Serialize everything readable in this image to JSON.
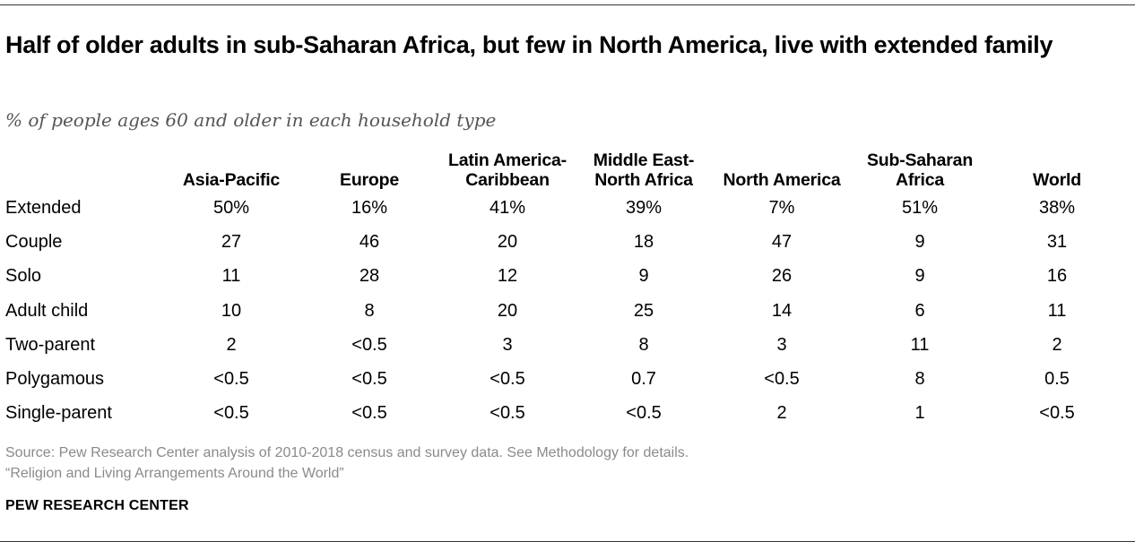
{
  "chart_data": {
    "type": "table",
    "title": "Half of older adults in sub-Saharan Africa, but few in North America, live with extended family",
    "subtitle": "% of people ages 60 and older in each household type",
    "columns": [
      [
        "Asia-Pacific"
      ],
      [
        "Europe"
      ],
      [
        "Latin America-",
        "Caribbean"
      ],
      [
        "Middle East-",
        "North Africa"
      ],
      [
        "North America"
      ],
      [
        "Sub-Saharan",
        "Africa"
      ],
      [
        "World"
      ]
    ],
    "rows": [
      {
        "label": "Extended",
        "values": [
          "50%",
          "16%",
          "41%",
          "39%",
          "7%",
          "51%",
          "38%"
        ]
      },
      {
        "label": "Couple",
        "values": [
          "27",
          "46",
          "20",
          "18",
          "47",
          "9",
          "31"
        ]
      },
      {
        "label": "Solo",
        "values": [
          "11",
          "28",
          "12",
          "9",
          "26",
          "9",
          "16"
        ]
      },
      {
        "label": "Adult child",
        "values": [
          "10",
          "8",
          "20",
          "25",
          "14",
          "6",
          "11"
        ]
      },
      {
        "label": "Two-parent",
        "values": [
          "2",
          "<0.5",
          "3",
          "8",
          "3",
          "11",
          "2"
        ]
      },
      {
        "label": "Polygamous",
        "values": [
          "<0.5",
          "<0.5",
          "<0.5",
          "0.7",
          "<0.5",
          "8",
          "0.5"
        ]
      },
      {
        "label": "Single-parent",
        "values": [
          "<0.5",
          "<0.5",
          "<0.5",
          "<0.5",
          "2",
          "1",
          "<0.5"
        ]
      }
    ]
  },
  "source": {
    "line1": "Source: Pew Research Center analysis of 2010-2018 census and survey data. See Methodology for details.",
    "line2": "“Religion and Living Arrangements Around the World”"
  },
  "brand": "PEW RESEARCH CENTER"
}
